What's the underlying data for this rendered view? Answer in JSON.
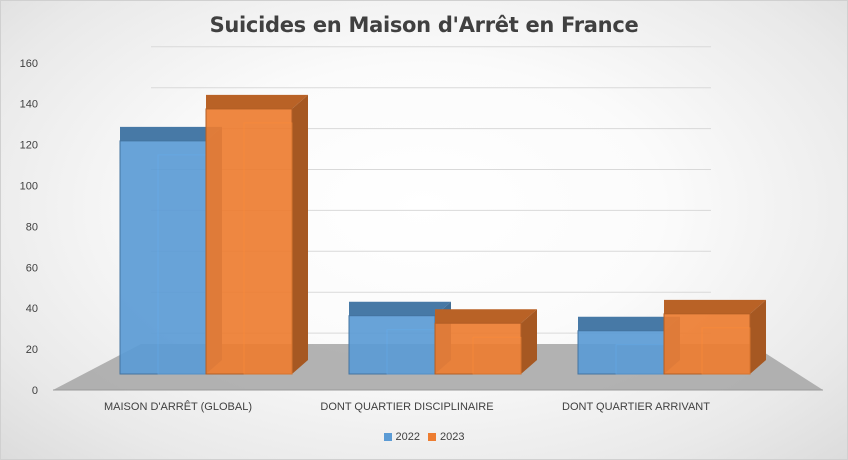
{
  "chart_data": {
    "type": "bar",
    "title": "Suicides en Maison d'Arrêt en France",
    "categories": [
      "MAISON D'ARRÊT (GLOBAL)",
      "DONT QUARTIER DISCIPLINAIRE",
      "DONT QUARTIER ARRIVANT"
    ],
    "series": [
      {
        "name": "2022",
        "values": [
          124,
          31,
          23
        ],
        "color": "#5b9bd5"
      },
      {
        "name": "2023",
        "values": [
          141,
          27,
          32
        ],
        "color": "#ed7d31"
      }
    ],
    "ylim": [
      0,
      160
    ],
    "yticks": [
      "0",
      "20",
      "40",
      "60",
      "80",
      "100",
      "120",
      "140",
      "160"
    ],
    "grid": true,
    "legend_position": "bottom"
  }
}
